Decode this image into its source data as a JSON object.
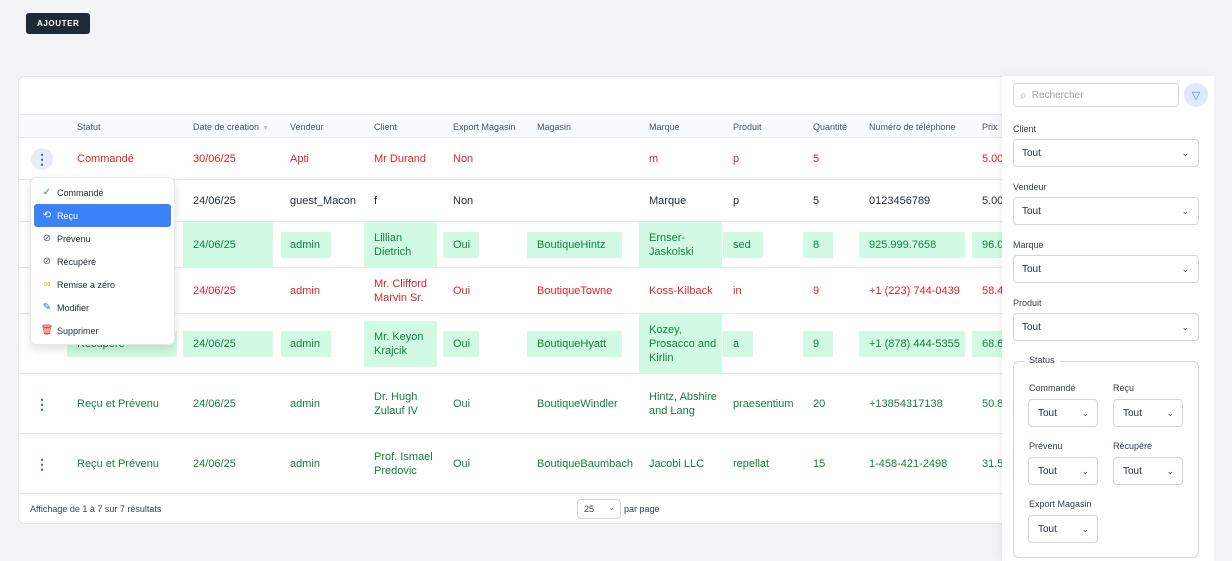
{
  "toolbar": {
    "add_label": "AJOUTER"
  },
  "table": {
    "columns": [
      "Statut",
      "Date de création",
      "Vendeur",
      "Client",
      "Export Magasin",
      "Magasin",
      "Marque",
      "Produit",
      "Quantité",
      "Numéro de téléphone",
      "Prix"
    ],
    "rows": [
      {
        "status": "Commandé",
        "date": "30/06/25",
        "vendeur": "Apti",
        "client": "Mr Durand",
        "export": "Non",
        "magasin": "",
        "marque": "m",
        "produit": "p",
        "quantite": "5",
        "telephone": "",
        "prix": "5.00"
      },
      {
        "status": "",
        "date": "24/06/25",
        "vendeur": "guest_Macon",
        "client": "f",
        "export": "Non",
        "magasin": "",
        "marque": "Marque",
        "produit": "p",
        "quantite": "5",
        "telephone": "0123456789",
        "prix": "5.00"
      },
      {
        "status": "",
        "date": "24/06/25",
        "vendeur": "admin",
        "client": "Lillian Dietrich",
        "export": "Oui",
        "magasin": "BoutiqueHintz",
        "marque": "Ernser-Jaskolski",
        "produit": "sed",
        "quantite": "8",
        "telephone": "925.999.7658",
        "prix": "96.0"
      },
      {
        "status": "",
        "date": "24/06/25",
        "vendeur": "admin",
        "client": "Mr. Clifford Marvin Sr.",
        "export": "Oui",
        "magasin": "BoutiqueTowne",
        "marque": "Koss-Kilback",
        "produit": "in",
        "quantite": "9",
        "telephone": "+1 (223) 744-0439",
        "prix": "58.4"
      },
      {
        "status": "Récupéré",
        "date": "24/06/25",
        "vendeur": "admin",
        "client": "Mr. Keyon Krajcik",
        "export": "Oui",
        "magasin": "BoutiqueHyatt",
        "marque": "Kozey, Prosacco and Kirlin",
        "produit": "a",
        "quantite": "9",
        "telephone": "+1 (878) 444-5355",
        "prix": "68.6"
      },
      {
        "status": "Reçu et Prévenu",
        "date": "24/06/25",
        "vendeur": "admin",
        "client": "Dr. Hugh Zulauf IV",
        "export": "Oui",
        "magasin": "BoutiqueWindler",
        "marque": "Hintz, Abshire and Lang",
        "produit": "praesentium",
        "quantite": "20",
        "telephone": "+13854317138",
        "prix": "50.8"
      },
      {
        "status": "Reçu et Prévenu",
        "date": "24/06/25",
        "vendeur": "admin",
        "client": "Prof. Ismael Predovic",
        "export": "Oui",
        "magasin": "BoutiqueBaumbach",
        "marque": "Jacobi LLC",
        "produit": "repellat",
        "quantite": "15",
        "telephone": "1-458-421-2498",
        "prix": "31.5"
      }
    ]
  },
  "row_menu": {
    "items": [
      {
        "label": "Commandé",
        "icon": "check-icon"
      },
      {
        "label": "Reçu",
        "icon": "receive-icon"
      },
      {
        "label": "Prévenu",
        "icon": "ban-icon"
      },
      {
        "label": "Récupéré",
        "icon": "ban-icon"
      },
      {
        "label": "Remise a zéro",
        "icon": "reset-icon"
      },
      {
        "label": "Modifier",
        "icon": "pencil-icon"
      },
      {
        "label": "Supprimer",
        "icon": "trash-icon"
      }
    ]
  },
  "footer": {
    "summary": "Affichage de 1 à 7 sur 7 résultats",
    "per_page": "25",
    "per_page_label": "par page"
  },
  "filters": {
    "search_placeholder": "Rechercher",
    "client_label": "Client",
    "client_value": "Tout",
    "vendeur_label": "Vendeur",
    "vendeur_value": "Tout",
    "marque_label": "Marque",
    "marque_value": "Tout",
    "produit_label": "Produit",
    "produit_value": "Tout",
    "status_legend": "Status",
    "commande_label": "Commandé",
    "commande_value": "Tout",
    "recu_label": "Reçu",
    "recu_value": "Tout",
    "prevenu_label": "Prévenu",
    "prevenu_value": "Tout",
    "recupere_label": "Récupéré",
    "recupere_value": "Tout",
    "export_label": "Export Magasin",
    "export_value": "Tout"
  },
  "colors": {
    "primary": "#3b82f6",
    "red": "#dc2626",
    "green": "#15803d",
    "highlight": "#d1fae5",
    "dark_button": "#1f2937"
  }
}
